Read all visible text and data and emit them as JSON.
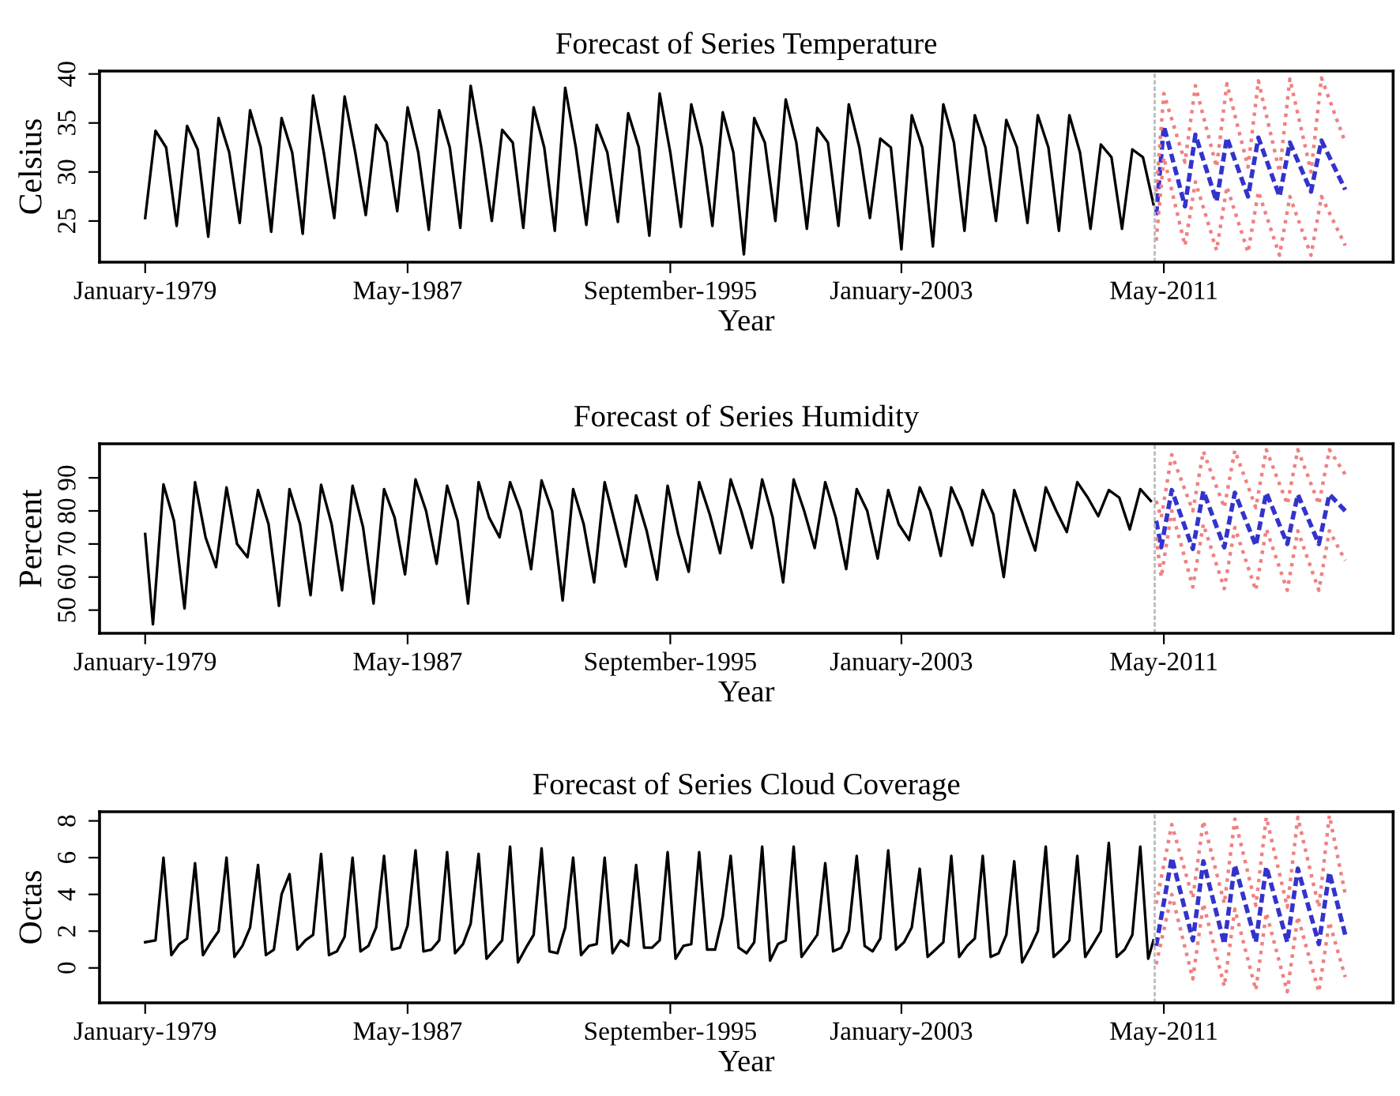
{
  "chart_data": [
    {
      "type": "line",
      "title": "Forecast of Series Temperature",
      "xlabel": "Year",
      "ylabel": "Celsius",
      "xlim": [
        "1977-07-21",
        "2018-08-10"
      ],
      "xticks": [
        {
          "value": "1979-01",
          "label": "January-1979"
        },
        {
          "value": "1987-05",
          "label": "May-1987"
        },
        {
          "value": "1995-09",
          "label": "September-1995"
        },
        {
          "value": "2003-01",
          "label": "January-2003"
        },
        {
          "value": "2011-05",
          "label": "May-2011"
        }
      ],
      "ylim": [
        20.8,
        40.3
      ],
      "yticks": [
        25,
        30,
        35,
        40
      ],
      "grid": false,
      "ref_lines": [
        {
          "axis": "x",
          "value": "2011-01-15",
          "color": "#bbbbbb",
          "line_style": "dashed"
        }
      ],
      "series": [
        {
          "color": "#000000",
          "line_style": "solid",
          "x": [
            "1979-01",
            "1979-05",
            "1979-09",
            "1980-01",
            "1980-05",
            "1980-09",
            "1981-01",
            "1981-05",
            "1981-09",
            "1982-01",
            "1982-05",
            "1982-09",
            "1983-01",
            "1983-05",
            "1983-09",
            "1984-01",
            "1984-05",
            "1984-09",
            "1985-01",
            "1985-05",
            "1985-09",
            "1986-01",
            "1986-05",
            "1986-09",
            "1987-01",
            "1987-05",
            "1987-09",
            "1988-01",
            "1988-05",
            "1988-09",
            "1989-01",
            "1989-05",
            "1989-09",
            "1990-01",
            "1990-05",
            "1990-09",
            "1991-01",
            "1991-05",
            "1991-09",
            "1992-01",
            "1992-05",
            "1992-09",
            "1993-01",
            "1993-05",
            "1993-09",
            "1994-01",
            "1994-05",
            "1994-09",
            "1995-01",
            "1995-05",
            "1995-09",
            "1996-01",
            "1996-05",
            "1996-09",
            "1997-01",
            "1997-05",
            "1997-09",
            "1998-01",
            "1998-05",
            "1998-09",
            "1999-01",
            "1999-05",
            "1999-09",
            "2000-01",
            "2000-05",
            "2000-09",
            "2001-01",
            "2001-05",
            "2001-09",
            "2002-01",
            "2002-05",
            "2002-09",
            "2003-01",
            "2003-05",
            "2003-09",
            "2004-01",
            "2004-05",
            "2004-09",
            "2005-01",
            "2005-05",
            "2005-09",
            "2006-01",
            "2006-05",
            "2006-09",
            "2007-01",
            "2007-05",
            "2007-09",
            "2008-01",
            "2008-05",
            "2008-09",
            "2009-01",
            "2009-05",
            "2009-09",
            "2010-01",
            "2010-05",
            "2010-09",
            "2011-01"
          ],
          "values": [
            25.3,
            34.2,
            32.5,
            24.5,
            34.7,
            32.3,
            23.4,
            35.5,
            32.0,
            24.8,
            36.3,
            32.5,
            23.9,
            35.5,
            32.0,
            23.7,
            37.8,
            32.0,
            25.3,
            37.7,
            32.0,
            25.6,
            34.8,
            33.0,
            26.0,
            36.6,
            32.0,
            24.1,
            36.3,
            32.5,
            24.3,
            38.8,
            32.5,
            25.0,
            34.3,
            33.0,
            24.3,
            36.6,
            32.5,
            24.0,
            38.6,
            32.5,
            24.6,
            34.8,
            32.0,
            24.9,
            36.0,
            32.5,
            23.5,
            38.0,
            32.0,
            24.4,
            36.9,
            32.5,
            24.5,
            36.1,
            32.0,
            21.6,
            35.5,
            33.0,
            25.0,
            37.4,
            33.0,
            24.2,
            34.5,
            33.0,
            24.5,
            36.9,
            32.5,
            25.3,
            33.4,
            32.5,
            22.1,
            35.8,
            32.5,
            22.4,
            36.9,
            33.0,
            24.0,
            35.8,
            32.5,
            25.0,
            35.3,
            32.5,
            24.8,
            35.8,
            32.5,
            24.0,
            35.8,
            32.0,
            24.2,
            32.8,
            31.5,
            24.2,
            32.3,
            31.5,
            26.7
          ]
        },
        {
          "color": "#3333cc",
          "line_style": "dashed",
          "x": [
            "2011-02",
            "2011-05",
            "2012-01",
            "2012-05",
            "2013-01",
            "2013-05",
            "2014-01",
            "2014-05",
            "2015-01",
            "2015-05",
            "2016-01",
            "2016-05",
            "2017-02"
          ],
          "values": [
            25.6,
            34.7,
            26.5,
            33.8,
            27.0,
            33.5,
            27.5,
            33.5,
            27.5,
            33.0,
            28.0,
            33.2,
            28.2
          ]
        },
        {
          "color": "#f08080",
          "line_style": "dotted",
          "x": [
            "2011-02",
            "2011-05",
            "2012-01",
            "2012-05",
            "2013-01",
            "2013-05",
            "2014-01",
            "2014-05",
            "2015-01",
            "2015-05",
            "2016-01",
            "2016-05",
            "2017-02"
          ],
          "values": [
            28,
            38.0,
            31,
            38.8,
            30.5,
            39.0,
            30.5,
            39.3,
            30,
            39.5,
            30,
            39.6,
            33
          ]
        },
        {
          "color": "#f08080",
          "line_style": "dotted",
          "x": [
            "2011-02",
            "2011-05",
            "2012-01",
            "2012-05",
            "2013-01",
            "2013-05",
            "2014-01",
            "2014-05",
            "2015-01",
            "2015-05",
            "2016-01",
            "2016-05",
            "2017-02"
          ],
          "values": [
            23,
            31.5,
            22.5,
            29,
            22,
            28.5,
            21.8,
            28,
            21.5,
            27.5,
            21.5,
            27.5,
            22.5
          ]
        }
      ]
    },
    {
      "type": "line",
      "title": "Forecast of Series Humidity",
      "xlabel": "Year",
      "ylabel": "Percent",
      "xlim": [
        "1977-07-21",
        "2018-08-10"
      ],
      "xticks": [
        {
          "value": "1979-01",
          "label": "January-1979"
        },
        {
          "value": "1987-05",
          "label": "May-1987"
        },
        {
          "value": "1995-09",
          "label": "September-1995"
        },
        {
          "value": "2003-01",
          "label": "January-2003"
        },
        {
          "value": "2011-05",
          "label": "May-2011"
        }
      ],
      "ylim": [
        43,
        100.3
      ],
      "yticks": [
        50,
        60,
        70,
        80,
        90
      ],
      "grid": false,
      "ref_lines": [
        {
          "axis": "x",
          "value": "2011-01-15",
          "color": "#bbbbbb",
          "line_style": "dashed"
        }
      ],
      "series": [
        {
          "color": "#000000",
          "line_style": "solid",
          "x": [
            "1979-01",
            "1979-04",
            "1979-08",
            "1979-12",
            "1980-04",
            "1980-08",
            "1980-12",
            "1981-04",
            "1981-08",
            "1981-12",
            "1982-04",
            "1982-08",
            "1982-12",
            "1983-04",
            "1983-08",
            "1983-12",
            "1984-04",
            "1984-08",
            "1984-12",
            "1985-04",
            "1985-08",
            "1985-12",
            "1986-04",
            "1986-08",
            "1986-12",
            "1987-04",
            "1987-08",
            "1987-12",
            "1988-04",
            "1988-08",
            "1988-12",
            "1989-04",
            "1989-08",
            "1989-12",
            "1990-04",
            "1990-08",
            "1990-12",
            "1991-04",
            "1991-08",
            "1991-12",
            "1992-04",
            "1992-08",
            "1992-12",
            "1993-04",
            "1993-08",
            "1993-12",
            "1994-04",
            "1994-08",
            "1994-12",
            "1995-04",
            "1995-08",
            "1995-12",
            "1996-04",
            "1996-08",
            "1996-12",
            "1997-04",
            "1997-08",
            "1997-12",
            "1998-04",
            "1998-08",
            "1998-12",
            "1999-04",
            "1999-08",
            "1999-12",
            "2000-04",
            "2000-08",
            "2000-12",
            "2001-04",
            "2001-08",
            "2001-12",
            "2002-04",
            "2002-08",
            "2002-12",
            "2003-04",
            "2003-08",
            "2003-12",
            "2004-04",
            "2004-08",
            "2004-12",
            "2005-04",
            "2005-08",
            "2005-12",
            "2006-04",
            "2006-08",
            "2006-12",
            "2007-04",
            "2007-08",
            "2007-12",
            "2008-04",
            "2008-08",
            "2008-12",
            "2009-04",
            "2009-08",
            "2009-12",
            "2010-04",
            "2010-08",
            "2010-12"
          ],
          "values": [
            73,
            45.7,
            88,
            77,
            50.5,
            88.7,
            72,
            63,
            87.1,
            70,
            66,
            86.3,
            76,
            51.3,
            86.6,
            76,
            54.5,
            87.9,
            76,
            56,
            87.6,
            75,
            52,
            86.6,
            78,
            60.8,
            89.5,
            80,
            64,
            87.6,
            77,
            52,
            88.7,
            78,
            72,
            88.7,
            80,
            62.4,
            89.2,
            80,
            52.9,
            86.6,
            76,
            58.4,
            88.7,
            76,
            63.2,
            84.7,
            74,
            59.2,
            87.6,
            73,
            61.6,
            88.7,
            79,
            67.2,
            89.5,
            80,
            68.8,
            89.5,
            78,
            58.4,
            89.5,
            80,
            68.8,
            88.7,
            78,
            62.4,
            86.6,
            80,
            65.6,
            86.3,
            76,
            71.2,
            87.1,
            80,
            66.4,
            87.1,
            80,
            69.6,
            86.3,
            79,
            60,
            86.3,
            77,
            68,
            87.1,
            80,
            73.6,
            88.7,
            84,
            78.4,
            86.3,
            84,
            74.4,
            86.6,
            83
          ]
        },
        {
          "color": "#3333cc",
          "line_style": "dashed",
          "x": [
            "2011-02",
            "2011-04",
            "2011-08",
            "2012-04",
            "2012-08",
            "2013-04",
            "2013-08",
            "2014-04",
            "2014-08",
            "2015-04",
            "2015-08",
            "2016-04",
            "2016-08",
            "2017-02"
          ],
          "values": [
            77,
            69,
            86.3,
            68.5,
            86,
            69,
            85.5,
            69.5,
            85.5,
            70,
            85,
            70,
            85,
            80
          ]
        },
        {
          "color": "#f08080",
          "line_style": "dotted",
          "x": [
            "2011-02",
            "2011-04",
            "2011-08",
            "2012-04",
            "2012-08",
            "2013-04",
            "2013-08",
            "2014-04",
            "2014-08",
            "2015-04",
            "2015-08",
            "2016-04",
            "2016-08",
            "2017-02"
          ],
          "values": [
            83,
            78,
            97,
            80,
            98,
            81,
            98.3,
            81,
            98.5,
            82,
            98.5,
            82,
            98.5,
            91
          ]
        },
        {
          "color": "#f08080",
          "line_style": "dotted",
          "x": [
            "2011-02",
            "2011-04",
            "2011-08",
            "2012-04",
            "2012-08",
            "2013-04",
            "2013-08",
            "2014-04",
            "2014-08",
            "2015-04",
            "2015-08",
            "2016-04",
            "2016-08",
            "2017-02"
          ],
          "values": [
            72,
            60,
            80,
            57,
            76,
            56.5,
            75,
            56,
            74.5,
            56,
            74,
            56,
            74,
            65
          ]
        }
      ]
    },
    {
      "type": "line",
      "title": "Forecast of Series Cloud Coverage",
      "xlabel": "Year",
      "ylabel": "Octas",
      "xlim": [
        "1977-07-21",
        "2018-08-10"
      ],
      "xticks": [
        {
          "value": "1979-01",
          "label": "January-1979"
        },
        {
          "value": "1987-05",
          "label": "May-1987"
        },
        {
          "value": "1995-09",
          "label": "September-1995"
        },
        {
          "value": "2003-01",
          "label": "January-2003"
        },
        {
          "value": "2011-05",
          "label": "May-2011"
        }
      ],
      "ylim": [
        -1.9,
        8.5
      ],
      "yticks": [
        0,
        2,
        4,
        6,
        8
      ],
      "grid": false,
      "ref_lines": [
        {
          "axis": "x",
          "value": "2011-01-15",
          "color": "#bbbbbb",
          "line_style": "dashed"
        }
      ],
      "series": [
        {
          "color": "#000000",
          "line_style": "solid",
          "x": [
            "1979-01",
            "1979-05",
            "1979-08",
            "1979-11",
            "1980-02",
            "1980-05",
            "1980-08",
            "1980-11",
            "1981-02",
            "1981-05",
            "1981-08",
            "1981-11",
            "1982-02",
            "1982-05",
            "1982-08",
            "1982-11",
            "1983-02",
            "1983-05",
            "1983-08",
            "1983-11",
            "1984-02",
            "1984-05",
            "1984-08",
            "1984-11",
            "1985-02",
            "1985-05",
            "1985-08",
            "1985-11",
            "1986-02",
            "1986-05",
            "1986-08",
            "1986-11",
            "1987-02",
            "1987-05",
            "1987-08",
            "1987-11",
            "1988-02",
            "1988-05",
            "1988-08",
            "1988-11",
            "1989-02",
            "1989-05",
            "1989-08",
            "1989-11",
            "1990-02",
            "1990-05",
            "1990-08",
            "1990-11",
            "1991-02",
            "1991-05",
            "1991-08",
            "1991-11",
            "1992-02",
            "1992-05",
            "1992-08",
            "1992-11",
            "1993-02",
            "1993-05",
            "1993-08",
            "1993-11",
            "1994-02",
            "1994-05",
            "1994-08",
            "1994-11",
            "1995-02",
            "1995-05",
            "1995-08",
            "1995-11",
            "1996-02",
            "1996-05",
            "1996-08",
            "1996-11",
            "1997-02",
            "1997-05",
            "1997-08",
            "1997-11",
            "1998-02",
            "1998-05",
            "1998-08",
            "1998-11",
            "1999-02",
            "1999-05",
            "1999-08",
            "1999-11",
            "2000-02",
            "2000-05",
            "2000-08",
            "2000-11",
            "2001-02",
            "2001-05",
            "2001-08",
            "2001-11",
            "2002-02",
            "2002-05",
            "2002-08",
            "2002-11",
            "2003-02",
            "2003-05",
            "2003-08",
            "2003-11",
            "2004-02",
            "2004-05",
            "2004-08",
            "2004-11",
            "2005-02",
            "2005-05",
            "2005-08",
            "2005-11",
            "2006-02",
            "2006-05",
            "2006-08",
            "2006-11",
            "2007-02",
            "2007-05",
            "2007-08",
            "2007-11",
            "2008-02",
            "2008-05",
            "2008-08",
            "2008-11",
            "2009-02",
            "2009-05",
            "2009-08",
            "2009-11",
            "2010-02",
            "2010-05",
            "2010-08",
            "2010-11",
            "2011-01"
          ],
          "values": [
            1.4,
            1.5,
            6.0,
            0.7,
            1.3,
            1.6,
            5.7,
            0.7,
            1.4,
            2.0,
            6.0,
            0.6,
            1.2,
            2.2,
            5.6,
            0.7,
            1.0,
            4.0,
            5.1,
            1.0,
            1.5,
            1.8,
            6.2,
            0.7,
            0.9,
            1.7,
            6.0,
            0.9,
            1.2,
            2.2,
            6.1,
            1.0,
            1.1,
            2.3,
            6.4,
            0.9,
            1.0,
            1.5,
            6.3,
            0.8,
            1.3,
            2.4,
            6.2,
            0.5,
            1.0,
            1.5,
            6.6,
            0.3,
            1.1,
            1.8,
            6.5,
            0.9,
            0.8,
            2.2,
            6.0,
            0.7,
            1.2,
            1.3,
            6.0,
            0.8,
            1.5,
            1.2,
            5.6,
            1.1,
            1.1,
            1.5,
            6.3,
            0.5,
            1.2,
            1.3,
            6.3,
            1.0,
            1.0,
            2.8,
            6.1,
            1.1,
            0.8,
            1.4,
            6.6,
            0.4,
            1.3,
            1.5,
            6.6,
            0.6,
            1.2,
            1.8,
            5.7,
            0.9,
            1.1,
            2.0,
            6.1,
            1.2,
            0.9,
            1.6,
            6.4,
            1.0,
            1.4,
            2.2,
            5.4,
            0.6,
            1.0,
            1.4,
            6.1,
            0.6,
            1.2,
            1.6,
            6.1,
            0.6,
            0.8,
            1.8,
            5.8,
            0.3,
            1.1,
            2.0,
            6.6,
            0.6,
            1.0,
            1.5,
            6.1,
            0.6,
            1.3,
            2.0,
            6.8,
            0.6,
            1.0,
            1.8,
            6.6,
            0.5,
            1.5
          ]
        },
        {
          "color": "#3333cc",
          "line_style": "dashed",
          "x": [
            "2011-02",
            "2011-08",
            "2012-04",
            "2012-08",
            "2013-04",
            "2013-08",
            "2014-04",
            "2014-08",
            "2015-04",
            "2015-08",
            "2016-04",
            "2016-08",
            "2017-02"
          ],
          "values": [
            1.2,
            6.0,
            1.5,
            5.8,
            1.3,
            5.6,
            1.4,
            5.5,
            1.4,
            5.4,
            1.3,
            5.2,
            1.8
          ]
        },
        {
          "color": "#f08080",
          "line_style": "dotted",
          "x": [
            "2011-02",
            "2011-08",
            "2012-04",
            "2012-08",
            "2013-04",
            "2013-08",
            "2014-04",
            "2014-08",
            "2015-04",
            "2015-08",
            "2016-04",
            "2016-08",
            "2017-02"
          ],
          "values": [
            3.5,
            7.8,
            3.8,
            8.0,
            3.5,
            8.1,
            3.4,
            8.2,
            3.3,
            8.2,
            3.3,
            8.3,
            4.0
          ]
        },
        {
          "color": "#f08080",
          "line_style": "dotted",
          "x": [
            "2011-02",
            "2011-08",
            "2012-04",
            "2012-08",
            "2013-04",
            "2013-08",
            "2014-04",
            "2014-08",
            "2015-04",
            "2015-08",
            "2016-04",
            "2016-08",
            "2017-02"
          ],
          "values": [
            0.2,
            4.0,
            -0.6,
            3.5,
            -1.0,
            3.2,
            -1.2,
            3.0,
            -1.3,
            2.8,
            -1.3,
            2.5,
            -0.5
          ]
        }
      ]
    }
  ]
}
